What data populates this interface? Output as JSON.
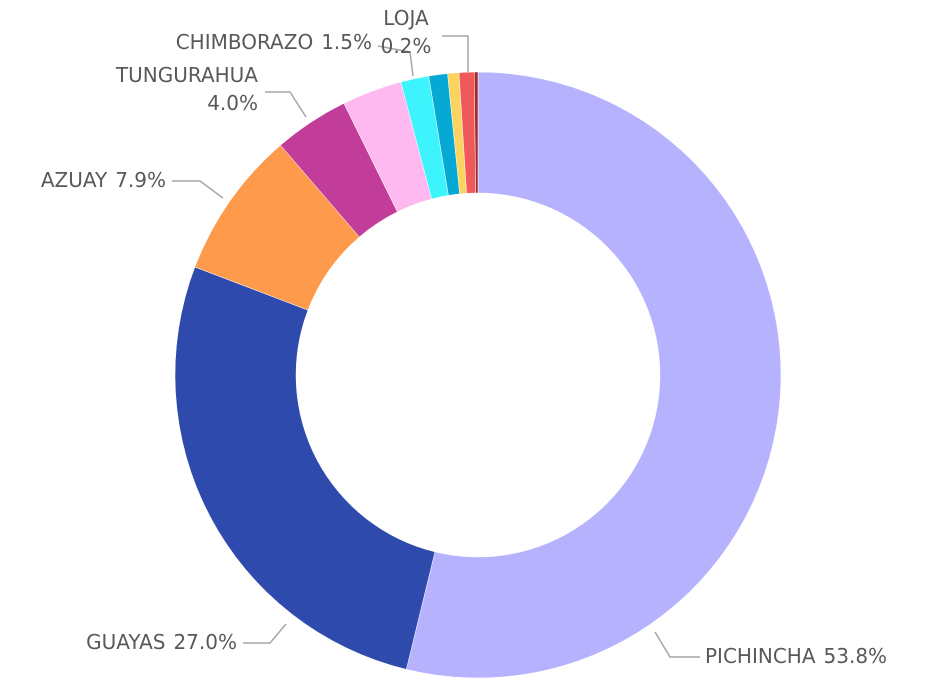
{
  "chart_data": {
    "type": "pie",
    "categories": [
      "PICHINCHA",
      "GUAYAS",
      "AZUAY",
      "TUNGURAHUA",
      null,
      "CHIMBORAZO",
      null,
      null,
      null,
      "LOJA"
    ],
    "values": [
      53.8,
      27.0,
      7.9,
      4.0,
      3.2,
      1.5,
      1.0,
      0.6,
      0.8,
      0.2
    ],
    "value_labels": [
      "53.8%",
      "27.0%",
      "7.9%",
      "4.0%",
      null,
      "1.5%",
      null,
      null,
      null,
      "0.2%"
    ],
    "colors": [
      "#b6b2fd",
      "#2f4aad",
      "#fe9a4c",
      "#c23d99",
      "#fdb9f0",
      "#3ef4fc",
      "#06a8d4",
      "#fbd460",
      "#f0595a",
      "#a32a2a"
    ],
    "donut": true
  }
}
